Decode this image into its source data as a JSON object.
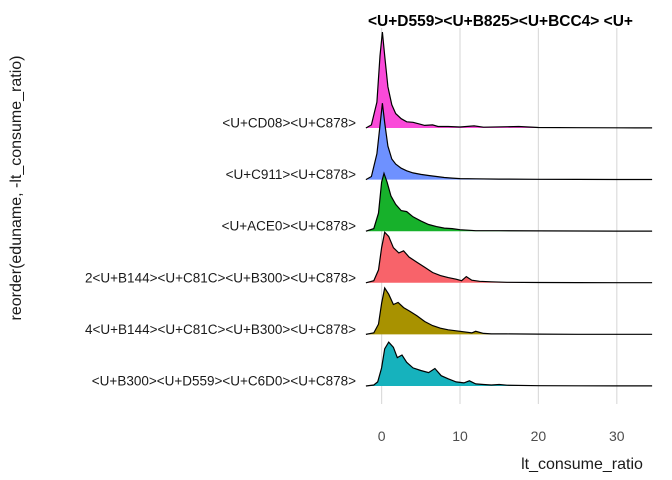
{
  "chart_data": {
    "type": "area",
    "subtype": "ridgeline",
    "title": "<U+D559><U+B825><U+BCC4> <U+",
    "xlabel": "lt_consume_ratio",
    "ylabel": "reorder(eduname, -lt_consume_ratio)",
    "xlim": [
      -2.5,
      35
    ],
    "x_ticks": [
      0,
      10,
      20,
      30
    ],
    "x_tick_labels": [
      "0",
      "10",
      "20",
      "30"
    ],
    "grid": true,
    "legend": "none",
    "series": [
      {
        "name": "<U+B300><U+D559><U+C6D0><U+C878>",
        "color": "#16b2bd",
        "points": [
          [
            -2,
            0
          ],
          [
            -1,
            0.02
          ],
          [
            -0.5,
            0.08
          ],
          [
            0,
            0.35
          ],
          [
            0.4,
            0.72
          ],
          [
            0.9,
            0.85
          ],
          [
            1.5,
            0.75
          ],
          [
            2.0,
            0.55
          ],
          [
            2.6,
            0.6
          ],
          [
            3.2,
            0.46
          ],
          [
            4.0,
            0.35
          ],
          [
            5.0,
            0.3
          ],
          [
            6.0,
            0.26
          ],
          [
            6.8,
            0.34
          ],
          [
            7.6,
            0.2
          ],
          [
            8.5,
            0.14
          ],
          [
            9.5,
            0.08
          ],
          [
            10.5,
            0.06
          ],
          [
            11.2,
            0.1
          ],
          [
            12,
            0.04
          ],
          [
            13,
            0.03
          ],
          [
            14,
            0.02
          ],
          [
            15,
            0.03
          ],
          [
            16,
            0.015
          ],
          [
            20,
            0.005
          ],
          [
            25,
            0.003
          ],
          [
            30,
            0.002
          ],
          [
            34.5,
            0.001
          ]
        ]
      },
      {
        "name": "4<U+B144><U+C81C><U+B300><U+C878>",
        "color": "#a89200",
        "points": [
          [
            -2,
            0
          ],
          [
            -1,
            0.03
          ],
          [
            -0.4,
            0.2
          ],
          [
            0,
            0.6
          ],
          [
            0.4,
            0.9
          ],
          [
            0.9,
            0.78
          ],
          [
            1.5,
            0.58
          ],
          [
            2.1,
            0.62
          ],
          [
            2.8,
            0.52
          ],
          [
            3.6,
            0.45
          ],
          [
            4.5,
            0.36
          ],
          [
            5.5,
            0.25
          ],
          [
            6.5,
            0.17
          ],
          [
            7.5,
            0.12
          ],
          [
            8.5,
            0.09
          ],
          [
            9.5,
            0.07
          ],
          [
            10.5,
            0.05
          ],
          [
            11.5,
            0.03
          ],
          [
            12,
            0.06
          ],
          [
            13,
            0.02
          ],
          [
            14,
            0.01
          ],
          [
            16,
            0.01
          ],
          [
            20,
            0.005
          ],
          [
            25,
            0.002
          ],
          [
            30,
            0.002
          ],
          [
            34.5,
            0.001
          ]
        ]
      },
      {
        "name": "2<U+B144><U+C81C><U+B300><U+C878>",
        "color": "#f8636a",
        "points": [
          [
            -2,
            0
          ],
          [
            -1,
            0.04
          ],
          [
            -0.4,
            0.25
          ],
          [
            0,
            0.68
          ],
          [
            0.4,
            0.98
          ],
          [
            0.9,
            0.9
          ],
          [
            1.5,
            0.68
          ],
          [
            2.2,
            0.58
          ],
          [
            2.8,
            0.62
          ],
          [
            3.5,
            0.5
          ],
          [
            4.5,
            0.4
          ],
          [
            5.5,
            0.3
          ],
          [
            6.5,
            0.2
          ],
          [
            7.5,
            0.14
          ],
          [
            8.5,
            0.1
          ],
          [
            9.5,
            0.07
          ],
          [
            10.2,
            0.04
          ],
          [
            10.8,
            0.12
          ],
          [
            11.5,
            0.05
          ],
          [
            12.5,
            0.03
          ],
          [
            14,
            0.02
          ],
          [
            16,
            0.01
          ],
          [
            20,
            0.005
          ],
          [
            25,
            0.003
          ],
          [
            30,
            0.002
          ],
          [
            34.5,
            0.001
          ]
        ]
      },
      {
        "name": "<U+ACE0><U+C878>",
        "color": "#17b12b",
        "points": [
          [
            -2,
            0
          ],
          [
            -1,
            0.05
          ],
          [
            -0.4,
            0.35
          ],
          [
            0,
            0.95
          ],
          [
            0.3,
            1.12
          ],
          [
            0.7,
            0.95
          ],
          [
            1.2,
            0.68
          ],
          [
            1.8,
            0.52
          ],
          [
            2.5,
            0.4
          ],
          [
            3.2,
            0.38
          ],
          [
            4.0,
            0.28
          ],
          [
            5.0,
            0.2
          ],
          [
            6.0,
            0.13
          ],
          [
            7.0,
            0.09
          ],
          [
            8.0,
            0.06
          ],
          [
            9.0,
            0.05
          ],
          [
            10.0,
            0.03
          ],
          [
            11,
            0.02
          ],
          [
            12,
            0.01
          ],
          [
            15,
            0.01
          ],
          [
            20,
            0.005
          ],
          [
            25,
            0.003
          ],
          [
            30,
            0.002
          ],
          [
            34.5,
            0.001
          ]
        ]
      },
      {
        "name": "<U+C911><U+C878>",
        "color": "#6e91ff",
        "points": [
          [
            -2,
            0
          ],
          [
            -1.3,
            0.06
          ],
          [
            -0.6,
            0.5
          ],
          [
            -0.2,
            1.05
          ],
          [
            0.1,
            1.48
          ],
          [
            0.4,
            1.1
          ],
          [
            0.8,
            0.65
          ],
          [
            1.3,
            0.4
          ],
          [
            1.8,
            0.3
          ],
          [
            2.5,
            0.22
          ],
          [
            3.2,
            0.17
          ],
          [
            4.0,
            0.13
          ],
          [
            5.0,
            0.1
          ],
          [
            6.0,
            0.08
          ],
          [
            7.0,
            0.06
          ],
          [
            8.0,
            0.04
          ],
          [
            9.0,
            0.03
          ],
          [
            10,
            0.02
          ],
          [
            12,
            0.015
          ],
          [
            15,
            0.01
          ],
          [
            20,
            0.005
          ],
          [
            25,
            0.003
          ],
          [
            30,
            0.002
          ],
          [
            34.5,
            0.001
          ]
        ]
      },
      {
        "name": "<U+CD08><U+C878>",
        "color": "#fa4ad9",
        "points": [
          [
            -2,
            0
          ],
          [
            -1.3,
            0.06
          ],
          [
            -0.6,
            0.5
          ],
          [
            -0.2,
            1.4
          ],
          [
            0.1,
            1.86
          ],
          [
            0.4,
            1.4
          ],
          [
            0.8,
            0.8
          ],
          [
            1.3,
            0.45
          ],
          [
            1.8,
            0.28
          ],
          [
            2.5,
            0.18
          ],
          [
            3.2,
            0.12
          ],
          [
            4.0,
            0.11
          ],
          [
            4.8,
            0.08
          ],
          [
            5.5,
            0.05
          ],
          [
            6.5,
            0.06
          ],
          [
            7.2,
            0.03
          ],
          [
            8.5,
            0.03
          ],
          [
            10,
            0.02
          ],
          [
            11.8,
            0.04
          ],
          [
            13,
            0.015
          ],
          [
            17.5,
            0.03
          ],
          [
            20,
            0.01
          ],
          [
            25,
            0.005
          ],
          [
            30,
            0.003
          ],
          [
            34.5,
            0.002
          ]
        ]
      }
    ]
  }
}
